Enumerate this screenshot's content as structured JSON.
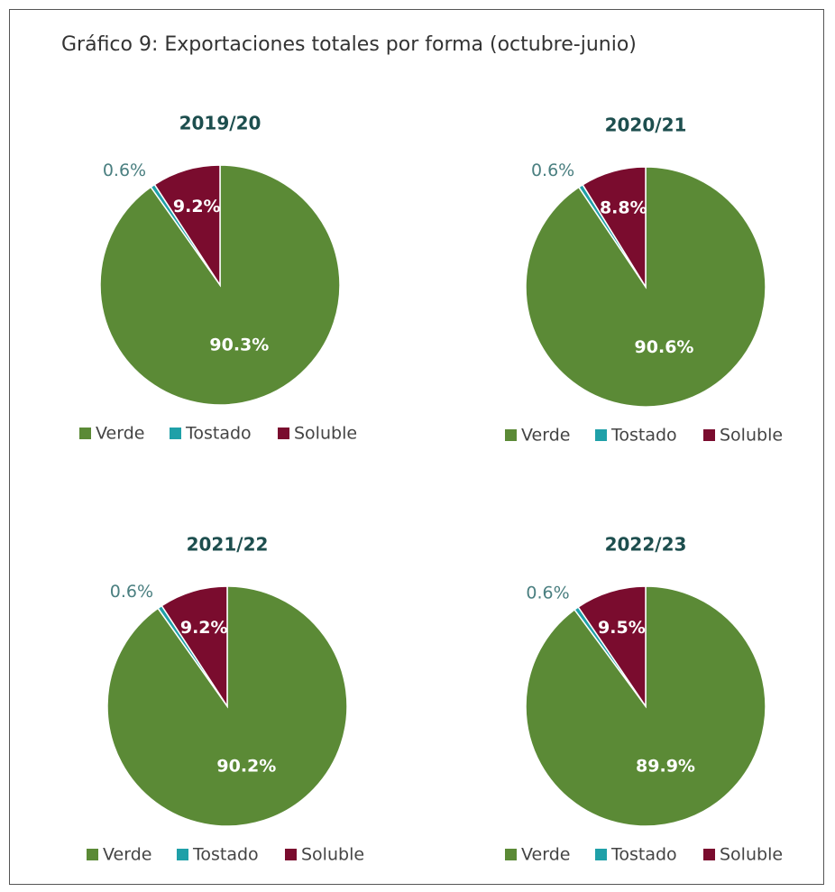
{
  "title": "Gráfico 9: Exportaciones totales por forma (octubre-junio)",
  "chart_data": [
    {
      "type": "pie",
      "title": "2019/20",
      "categories": [
        "Verde",
        "Tostado",
        "Soluble"
      ],
      "values": [
        90.3,
        0.6,
        9.2
      ],
      "value_labels": [
        "90.3%",
        "0.6%",
        "9.2%"
      ],
      "colors": [
        "#5b8a36",
        "#1fa0a8",
        "#7a0c2e"
      ]
    },
    {
      "type": "pie",
      "title": "2020/21",
      "categories": [
        "Verde",
        "Tostado",
        "Soluble"
      ],
      "values": [
        90.6,
        0.6,
        8.8
      ],
      "value_labels": [
        "90.6%",
        "0.6%",
        "8.8%"
      ],
      "colors": [
        "#5b8a36",
        "#1fa0a8",
        "#7a0c2e"
      ]
    },
    {
      "type": "pie",
      "title": "2021/22",
      "categories": [
        "Verde",
        "Tostado",
        "Soluble"
      ],
      "values": [
        90.2,
        0.6,
        9.2
      ],
      "value_labels": [
        "90.2%",
        "0.6%",
        "9.2%"
      ],
      "colors": [
        "#5b8a36",
        "#1fa0a8",
        "#7a0c2e"
      ]
    },
    {
      "type": "pie",
      "title": "2022/23",
      "categories": [
        "Verde",
        "Tostado",
        "Soluble"
      ],
      "values": [
        89.9,
        0.6,
        9.5
      ],
      "value_labels": [
        "89.9%",
        "0.6%",
        "9.5%"
      ],
      "colors": [
        "#5b8a36",
        "#1fa0a8",
        "#7a0c2e"
      ]
    }
  ]
}
